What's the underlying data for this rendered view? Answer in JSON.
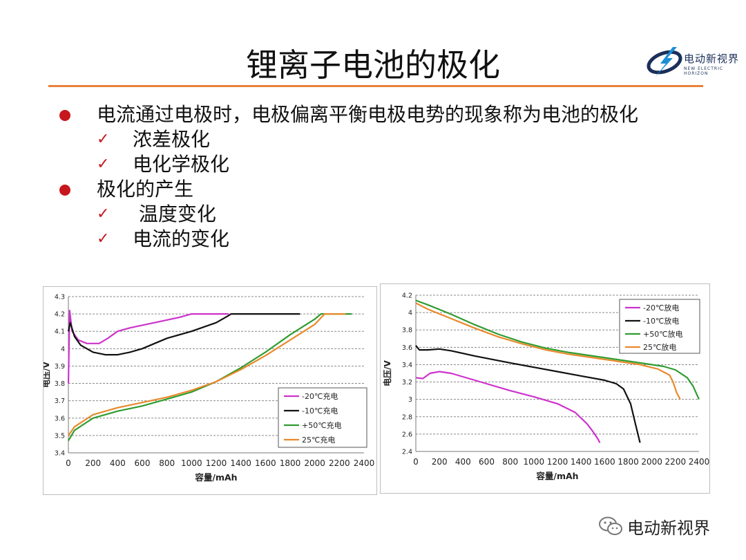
{
  "title": "锂离子电池的极化",
  "logo": {
    "name": "电动新视界",
    "english": "NEW ELECTRIC HORIZON"
  },
  "bullets": [
    {
      "type": "dot",
      "text": "电流通过电极时，电极偏离平衡电极电势的现象称为电池的极化"
    },
    {
      "type": "check",
      "text": "浓差极化"
    },
    {
      "type": "check",
      "text": "电化学极化"
    },
    {
      "type": "dot",
      "text": "极化的产生"
    },
    {
      "type": "check",
      "text": " 温度变化"
    },
    {
      "type": "check",
      "text": "电流的变化"
    }
  ],
  "footer": {
    "text": "电动新视界",
    "icon": "wechat-icon"
  },
  "chart_data": [
    {
      "type": "line",
      "xlabel": "容量/mAh",
      "ylabel": "电压/V",
      "xlim": [
        0,
        2400
      ],
      "ylim": [
        3.4,
        4.3
      ],
      "xticks": [
        0,
        200,
        400,
        600,
        800,
        1000,
        1200,
        1400,
        1600,
        1800,
        2000,
        2200,
        2400
      ],
      "yticks": [
        3.4,
        3.5,
        3.6,
        3.7,
        3.8,
        3.9,
        4,
        4.1,
        4.2,
        4.3
      ],
      "ytick_labels": [
        "3.4",
        "3.5",
        "3.6",
        "3.7",
        "3.8",
        "3.9",
        "4",
        "4.1",
        "4.2",
        "4.3"
      ],
      "grid": true,
      "legend_position": "bottom-right",
      "series": [
        {
          "name": "-20℃充电",
          "color": "#cc33cc",
          "x": [
            0,
            10,
            30,
            80,
            150,
            250,
            320,
            400,
            500,
            700,
            900,
            1000,
            1300
          ],
          "y": [
            3.8,
            4.22,
            4.1,
            4.05,
            4.03,
            4.03,
            4.06,
            4.1,
            4.12,
            4.15,
            4.18,
            4.2,
            4.2
          ]
        },
        {
          "name": "-10℃充电",
          "color": "#111111",
          "x": [
            0,
            15,
            50,
            100,
            200,
            300,
            400,
            500,
            600,
            700,
            800,
            1000,
            1200,
            1300,
            1320,
            1880
          ],
          "y": [
            4.1,
            4.15,
            4.07,
            4.02,
            3.98,
            3.965,
            3.965,
            3.98,
            4.0,
            4.03,
            4.06,
            4.1,
            4.15,
            4.19,
            4.2,
            4.2
          ]
        },
        {
          "name": "+50℃充电",
          "color": "#2f9c2f",
          "x": [
            0,
            50,
            200,
            400,
            600,
            800,
            1000,
            1200,
            1400,
            1600,
            1800,
            2000,
            2050,
            2300
          ],
          "y": [
            3.47,
            3.53,
            3.6,
            3.64,
            3.67,
            3.71,
            3.75,
            3.81,
            3.89,
            3.98,
            4.08,
            4.17,
            4.2,
            4.2
          ]
        },
        {
          "name": "25℃充电",
          "color": "#e8892a",
          "x": [
            0,
            50,
            200,
            400,
            600,
            800,
            1000,
            1200,
            1400,
            1600,
            1800,
            2000,
            2080,
            2250
          ],
          "y": [
            3.5,
            3.55,
            3.62,
            3.66,
            3.69,
            3.72,
            3.76,
            3.81,
            3.88,
            3.96,
            4.05,
            4.14,
            4.2,
            4.2
          ]
        }
      ]
    },
    {
      "type": "line",
      "xlabel": "容量/mAh",
      "ylabel": "电压/V",
      "xlim": [
        0,
        2400
      ],
      "ylim": [
        2.4,
        4.2
      ],
      "xticks": [
        0,
        200,
        400,
        600,
        800,
        1000,
        1200,
        1400,
        1600,
        1800,
        2000,
        2200,
        2400
      ],
      "yticks": [
        2.4,
        2.6,
        2.8,
        3.0,
        3.2,
        3.4,
        3.6,
        3.8,
        4.0,
        4.2
      ],
      "ytick_labels": [
        "2.4",
        "2.6",
        "2.8",
        "3",
        "3.2",
        "3.4",
        "3.6",
        "3.8",
        "4",
        "4.2"
      ],
      "grid": true,
      "legend_position": "top-right",
      "series": [
        {
          "name": "-20℃放电",
          "color": "#cc33cc",
          "x": [
            0,
            60,
            120,
            200,
            300,
            500,
            800,
            1000,
            1200,
            1350,
            1450,
            1500,
            1540,
            1560
          ],
          "y": [
            3.25,
            3.24,
            3.3,
            3.32,
            3.3,
            3.22,
            3.1,
            3.03,
            2.95,
            2.85,
            2.72,
            2.63,
            2.55,
            2.5
          ]
        },
        {
          "name": "-10℃放电",
          "color": "#111111",
          "x": [
            0,
            30,
            100,
            200,
            300,
            500,
            800,
            1000,
            1200,
            1400,
            1600,
            1700,
            1760,
            1820,
            1860,
            1900
          ],
          "y": [
            3.62,
            3.57,
            3.57,
            3.58,
            3.56,
            3.5,
            3.42,
            3.37,
            3.32,
            3.27,
            3.22,
            3.18,
            3.12,
            2.95,
            2.72,
            2.5
          ]
        },
        {
          "name": "+50℃放电",
          "color": "#2f9c2f",
          "x": [
            0,
            100,
            300,
            500,
            700,
            900,
            1100,
            1300,
            1500,
            1700,
            1900,
            2100,
            2200,
            2300,
            2350,
            2400
          ],
          "y": [
            4.14,
            4.09,
            3.98,
            3.86,
            3.75,
            3.66,
            3.59,
            3.54,
            3.5,
            3.46,
            3.42,
            3.38,
            3.34,
            3.25,
            3.15,
            3.0
          ]
        },
        {
          "name": "25℃放电",
          "color": "#e8892a",
          "x": [
            0,
            100,
            300,
            500,
            700,
            900,
            1100,
            1300,
            1500,
            1700,
            1900,
            2050,
            2150,
            2180,
            2210,
            2240
          ],
          "y": [
            4.11,
            4.04,
            3.93,
            3.82,
            3.72,
            3.64,
            3.57,
            3.52,
            3.48,
            3.44,
            3.4,
            3.35,
            3.28,
            3.2,
            3.08,
            3.0
          ]
        }
      ]
    }
  ]
}
